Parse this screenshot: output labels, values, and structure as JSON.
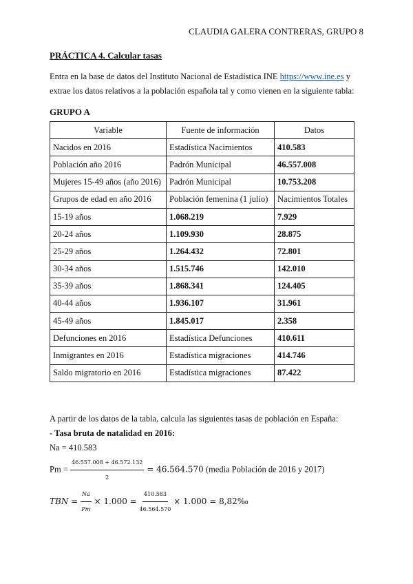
{
  "header": "CLAUDIA GALERA CONTRERAS, GRUPO 8",
  "title": "PRÁCTICA 4. Calcular tasas",
  "intro": {
    "before": "Entra en la base de datos del Instituto Nacional de Estadística INE ",
    "link": "https://www.ine.es",
    "after": " y",
    "line2": "extrae los datos relativos a la población española tal y como vienen en la siguiente tabla:"
  },
  "group": "GRUPO A",
  "table": {
    "headers": [
      "Variable",
      "Fuente de información",
      "Datos"
    ],
    "rows": [
      {
        "c": [
          "Nacidos en 2016",
          "Estadística Nacimientos",
          "410.583"
        ],
        "b": [
          false,
          false,
          true
        ]
      },
      {
        "c": [
          "Población año 2016",
          "Padrón Municipal",
          "46.557.008"
        ],
        "b": [
          false,
          false,
          true
        ]
      },
      {
        "c": [
          "Mujeres 15-49 años (año 2016)",
          "Padrón Municipal",
          "10.753.208"
        ],
        "b": [
          false,
          false,
          true
        ]
      },
      {
        "c": [
          "Grupos de edad en año 2016",
          "Población femenina (1 julio)",
          "Nacimientos Totales"
        ],
        "b": [
          false,
          false,
          false
        ]
      },
      {
        "c": [
          "15-19 años",
          "1.068.219",
          "7.929"
        ],
        "b": [
          false,
          true,
          true
        ]
      },
      {
        "c": [
          "20-24 años",
          "1.109.930",
          "28.875"
        ],
        "b": [
          false,
          true,
          true
        ]
      },
      {
        "c": [
          "25-29 años",
          "1.264.432",
          "72.801"
        ],
        "b": [
          false,
          true,
          true
        ]
      },
      {
        "c": [
          "30-34 años",
          "1.515.746",
          "142.010"
        ],
        "b": [
          false,
          true,
          true
        ]
      },
      {
        "c": [
          "35-39 años",
          "1.868.341",
          "124.405"
        ],
        "b": [
          false,
          true,
          true
        ]
      },
      {
        "c": [
          "40-44 años",
          "1.936.107",
          "31.961"
        ],
        "b": [
          false,
          true,
          true
        ]
      },
      {
        "c": [
          "45-49 años",
          "1.845.017",
          "2.358"
        ],
        "b": [
          false,
          true,
          true
        ]
      },
      {
        "c": [
          "Defunciones en 2016",
          "Estadística Defunciones",
          "410.611"
        ],
        "b": [
          false,
          false,
          true
        ]
      },
      {
        "c": [
          "Inmigrantes en 2016",
          "Estadística migraciones",
          "414.746"
        ],
        "b": [
          false,
          false,
          true
        ]
      },
      {
        "c": [
          "Saldo migratorio en  2016",
          "Estadística migraciones",
          "87.422"
        ],
        "b": [
          false,
          false,
          true
        ]
      }
    ]
  },
  "section": {
    "intro": "A partir de los datos de la tabla, calcula las siguientes tasas de población en España:",
    "subtitle": "- Tasa bruta de natalidad en 2016:",
    "na": "Na = 410.583",
    "pm_label": "Pm = ",
    "pm_num": "46.557.008 + 46.572.132",
    "pm_den": "2",
    "pm_result": " = 46.564.570",
    "pm_note": " (media Población de 2016 y 2017)",
    "tbn_label": "TBN = ",
    "tbn_num1": "Na",
    "tbn_den1": "Pm",
    "tbn_mid": " × 1.000 = ",
    "tbn_num2": "410.583",
    "tbn_den2": "46.564.570",
    "tbn_end": " × 1.000 = 8,82‰"
  }
}
